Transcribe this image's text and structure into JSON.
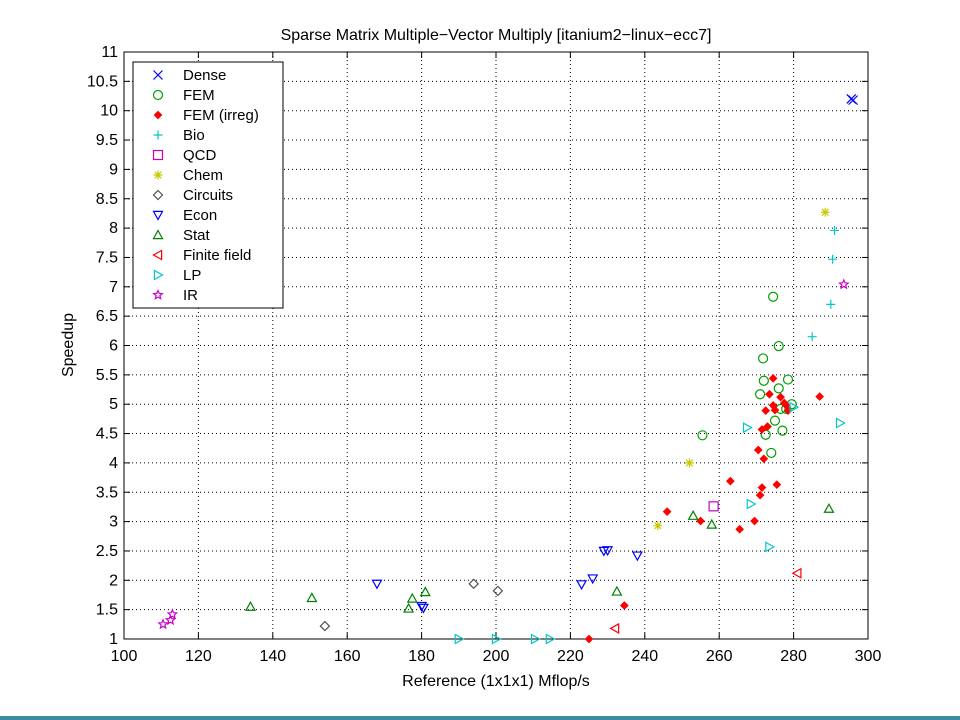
{
  "chart_data": {
    "type": "scatter",
    "title": "Sparse Matrix Multiple−Vector Multiply [itanium2−linux−ecc7]",
    "xlabel": "Reference (1x1x1) Mflop/s",
    "ylabel": "Speedup",
    "xlim": [
      100,
      300
    ],
    "ylim": [
      1,
      11
    ],
    "xticks": [
      100,
      120,
      140,
      160,
      180,
      200,
      220,
      240,
      260,
      280,
      300
    ],
    "yticks": [
      1,
      1.5,
      2,
      2.5,
      3,
      3.5,
      4,
      4.5,
      5,
      5.5,
      6,
      6.5,
      7,
      7.5,
      8,
      8.5,
      9,
      9.5,
      10,
      10.5,
      11
    ],
    "grid": true,
    "legend_position": "top-left",
    "series": [
      {
        "name": "Dense",
        "marker": "x",
        "color": "#0000ff",
        "points": [
          [
            295.5,
            10.2
          ],
          [
            296,
            10.18
          ]
        ]
      },
      {
        "name": "FEM",
        "marker": "o",
        "color": "#00a000",
        "points": [
          [
            255.5,
            4.47
          ],
          [
            271,
            5.17
          ],
          [
            271.8,
            5.78
          ],
          [
            272,
            5.4
          ],
          [
            272.5,
            4.48
          ],
          [
            274,
            4.17
          ],
          [
            274.5,
            6.83
          ],
          [
            275,
            4.72
          ],
          [
            276,
            5.27
          ],
          [
            276,
            5.99
          ],
          [
            276.5,
            4.92
          ],
          [
            277,
            4.55
          ],
          [
            278,
            4.92
          ],
          [
            278.5,
            5.42
          ],
          [
            279.5,
            5.0
          ]
        ]
      },
      {
        "name": "FEM (irreg)",
        "marker": "diamond-filled",
        "color": "#ff0000",
        "points": [
          [
            225,
            1.0
          ],
          [
            234.5,
            1.57
          ],
          [
            246,
            3.17
          ],
          [
            255,
            3.01
          ],
          [
            263,
            3.69
          ],
          [
            265.5,
            2.87
          ],
          [
            269.5,
            3.01
          ],
          [
            270.5,
            4.22
          ],
          [
            271,
            3.45
          ],
          [
            271.5,
            3.58
          ],
          [
            271.5,
            4.57
          ],
          [
            272,
            4.07
          ],
          [
            272.5,
            4.89
          ],
          [
            273,
            4.62
          ],
          [
            273.5,
            5.17
          ],
          [
            274.5,
            4.98
          ],
          [
            274.5,
            5.44
          ],
          [
            275,
            4.9
          ],
          [
            275.5,
            3.63
          ],
          [
            276.5,
            5.12
          ],
          [
            277.5,
            5.02
          ],
          [
            278,
            4.98
          ],
          [
            278.5,
            4.89
          ],
          [
            287,
            5.13
          ]
        ]
      },
      {
        "name": "Bio",
        "marker": "+",
        "color": "#00c8c8",
        "points": [
          [
            285,
            6.15
          ],
          [
            290,
            6.7
          ],
          [
            290.5,
            7.47
          ],
          [
            291,
            7.96
          ]
        ]
      },
      {
        "name": "QCD",
        "marker": "square",
        "color": "#c800c8",
        "points": [
          [
            258.5,
            3.26
          ]
        ]
      },
      {
        "name": "Chem",
        "marker": "asterisk",
        "color": "#c8c800",
        "points": [
          [
            243.5,
            2.93
          ],
          [
            252,
            4.0
          ],
          [
            288.5,
            8.27
          ]
        ]
      },
      {
        "name": "Circuits",
        "marker": "diamond",
        "color": "#505050",
        "points": [
          [
            154,
            1.22
          ],
          [
            194,
            1.94
          ],
          [
            200.5,
            1.82
          ]
        ]
      },
      {
        "name": "Econ",
        "marker": "triangle-down",
        "color": "#0000ff",
        "points": [
          [
            168,
            1.94
          ],
          [
            180,
            1.56
          ],
          [
            180.5,
            1.53
          ],
          [
            223,
            1.93
          ],
          [
            226,
            2.03
          ],
          [
            229,
            2.5
          ],
          [
            230,
            2.51
          ],
          [
            238,
            2.42
          ]
        ]
      },
      {
        "name": "Stat",
        "marker": "triangle-up",
        "color": "#008000",
        "points": [
          [
            134,
            1.55
          ],
          [
            150.5,
            1.7
          ],
          [
            176.5,
            1.52
          ],
          [
            177.5,
            1.69
          ],
          [
            181,
            1.8
          ],
          [
            232.5,
            1.81
          ],
          [
            253,
            3.1
          ],
          [
            258,
            2.95
          ],
          [
            289.5,
            3.22
          ]
        ]
      },
      {
        "name": "Finite field",
        "marker": "triangle-left",
        "color": "#ff0000",
        "points": [
          [
            232,
            1.18
          ],
          [
            281,
            2.12
          ]
        ]
      },
      {
        "name": "LP",
        "marker": "triangle-right",
        "color": "#00c8c8",
        "points": [
          [
            190,
            1.0
          ],
          [
            200,
            1.0
          ],
          [
            210.5,
            1.0
          ],
          [
            214.5,
            1.0
          ],
          [
            267.5,
            4.6
          ],
          [
            268.5,
            3.3
          ],
          [
            273.5,
            2.57
          ],
          [
            280,
            4.95
          ],
          [
            292.5,
            4.68
          ]
        ]
      },
      {
        "name": "IR",
        "marker": "star",
        "color": "#c800c8",
        "points": [
          [
            110.5,
            1.25
          ],
          [
            112.5,
            1.32
          ],
          [
            113,
            1.42
          ],
          [
            293.5,
            7.04
          ]
        ]
      }
    ]
  }
}
